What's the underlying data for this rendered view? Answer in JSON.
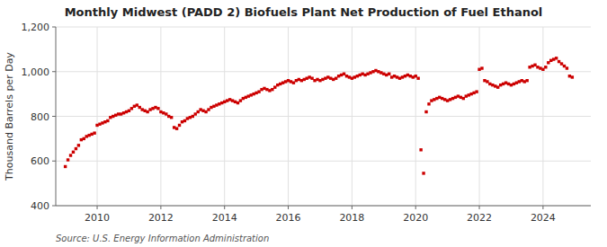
{
  "chart_data": {
    "type": "scatter",
    "title": "Monthly Midwest (PADD 2) Biofuels Plant Net Production of Fuel Ethanol",
    "ylabel": "Thousand Barrels per Day",
    "annotations": [
      "Source: U.S. Energy Information Administration"
    ],
    "color": "#cc0000",
    "marker": "square",
    "grid": true,
    "xlim": [
      2008.7,
      2025.5
    ],
    "xticks": [
      2010,
      2012,
      2014,
      2016,
      2018,
      2020,
      2022,
      2024
    ],
    "ylim": [
      400,
      1200
    ],
    "yticks": [
      400,
      600,
      800,
      {
        "value": 1000,
        "label": "1,000"
      },
      {
        "value": 1200,
        "label": "1,200"
      }
    ],
    "x": [
      2009.0,
      2009.083,
      2009.167,
      2009.25,
      2009.333,
      2009.417,
      2009.5,
      2009.583,
      2009.667,
      2009.75,
      2009.833,
      2009.917,
      2010.0,
      2010.083,
      2010.167,
      2010.25,
      2010.333,
      2010.417,
      2010.5,
      2010.583,
      2010.667,
      2010.75,
      2010.833,
      2010.917,
      2011.0,
      2011.083,
      2011.167,
      2011.25,
      2011.333,
      2011.417,
      2011.5,
      2011.583,
      2011.667,
      2011.75,
      2011.833,
      2011.917,
      2012.0,
      2012.083,
      2012.167,
      2012.25,
      2012.333,
      2012.417,
      2012.5,
      2012.583,
      2012.667,
      2012.75,
      2012.833,
      2012.917,
      2013.0,
      2013.083,
      2013.167,
      2013.25,
      2013.333,
      2013.417,
      2013.5,
      2013.583,
      2013.667,
      2013.75,
      2013.833,
      2013.917,
      2014.0,
      2014.083,
      2014.167,
      2014.25,
      2014.333,
      2014.417,
      2014.5,
      2014.583,
      2014.667,
      2014.75,
      2014.833,
      2014.917,
      2015.0,
      2015.083,
      2015.167,
      2015.25,
      2015.333,
      2015.417,
      2015.5,
      2015.583,
      2015.667,
      2015.75,
      2015.833,
      2015.917,
      2016.0,
      2016.083,
      2016.167,
      2016.25,
      2016.333,
      2016.417,
      2016.5,
      2016.583,
      2016.667,
      2016.75,
      2016.833,
      2016.917,
      2017.0,
      2017.083,
      2017.167,
      2017.25,
      2017.333,
      2017.417,
      2017.5,
      2017.583,
      2017.667,
      2017.75,
      2017.833,
      2017.917,
      2018.0,
      2018.083,
      2018.167,
      2018.25,
      2018.333,
      2018.417,
      2018.5,
      2018.583,
      2018.667,
      2018.75,
      2018.833,
      2018.917,
      2019.0,
      2019.083,
      2019.167,
      2019.25,
      2019.333,
      2019.417,
      2019.5,
      2019.583,
      2019.667,
      2019.75,
      2019.833,
      2019.917,
      2020.0,
      2020.083,
      2020.167,
      2020.25,
      2020.333,
      2020.417,
      2020.5,
      2020.583,
      2020.667,
      2020.75,
      2020.833,
      2020.917,
      2021.0,
      2021.083,
      2021.167,
      2021.25,
      2021.333,
      2021.417,
      2021.5,
      2021.583,
      2021.667,
      2021.75,
      2021.833,
      2021.917,
      2022.0,
      2022.083,
      2022.167,
      2022.25,
      2022.333,
      2022.417,
      2022.5,
      2022.583,
      2022.667,
      2022.75,
      2022.833,
      2022.917,
      2023.0,
      2023.083,
      2023.167,
      2023.25,
      2023.333,
      2023.417,
      2023.5,
      2023.583,
      2023.667,
      2023.75,
      2023.833,
      2023.917,
      2024.0,
      2024.083,
      2024.167,
      2024.25,
      2024.333,
      2024.417,
      2024.5,
      2024.583,
      2024.667,
      2024.75,
      2024.833,
      2024.917
    ],
    "values": [
      575,
      605,
      625,
      640,
      655,
      670,
      695,
      700,
      710,
      715,
      720,
      725,
      760,
      765,
      770,
      775,
      780,
      795,
      800,
      805,
      810,
      810,
      815,
      820,
      825,
      835,
      845,
      850,
      840,
      830,
      825,
      820,
      830,
      835,
      840,
      835,
      820,
      815,
      810,
      800,
      795,
      750,
      745,
      760,
      775,
      780,
      790,
      795,
      800,
      810,
      820,
      830,
      825,
      820,
      830,
      840,
      845,
      850,
      855,
      860,
      865,
      870,
      875,
      870,
      865,
      860,
      870,
      880,
      885,
      890,
      895,
      900,
      905,
      910,
      920,
      925,
      920,
      915,
      920,
      930,
      940,
      945,
      950,
      955,
      960,
      955,
      950,
      960,
      965,
      960,
      965,
      970,
      975,
      970,
      960,
      965,
      960,
      965,
      970,
      975,
      970,
      965,
      970,
      980,
      985,
      990,
      980,
      975,
      970,
      975,
      980,
      985,
      990,
      985,
      990,
      995,
      1000,
      1005,
      1000,
      995,
      990,
      985,
      990,
      975,
      980,
      975,
      970,
      975,
      980,
      985,
      980,
      975,
      980,
      970,
      650,
      545,
      820,
      855,
      870,
      875,
      880,
      885,
      880,
      875,
      870,
      875,
      880,
      885,
      890,
      885,
      880,
      890,
      895,
      900,
      905,
      910,
      1010,
      1015,
      960,
      955,
      945,
      940,
      935,
      930,
      940,
      945,
      950,
      945,
      940,
      945,
      950,
      955,
      960,
      955,
      960,
      1020,
      1025,
      1030,
      1020,
      1015,
      1010,
      1020,
      1040,
      1050,
      1055,
      1060,
      1045,
      1035,
      1025,
      1015,
      980,
      975
    ]
  }
}
